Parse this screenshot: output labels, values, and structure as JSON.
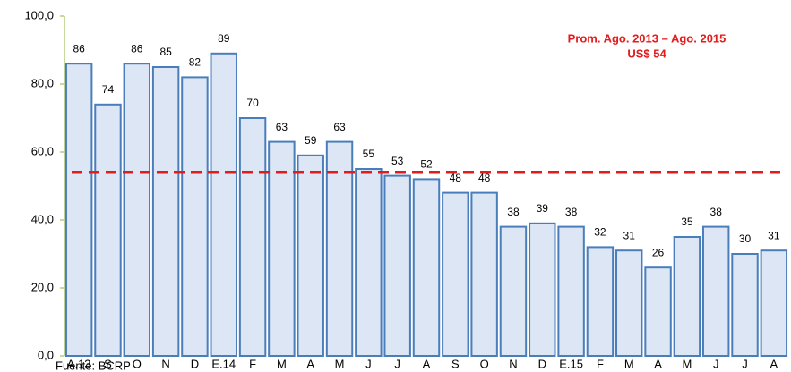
{
  "chart_data": {
    "type": "bar",
    "categories": [
      "A.13",
      "S",
      "O",
      "N",
      "D",
      "E.14",
      "F",
      "M",
      "A",
      "M",
      "J",
      "J",
      "A",
      "S",
      "O",
      "N",
      "D",
      "E.15",
      "F",
      "M",
      "A",
      "M",
      "J",
      "J",
      "A"
    ],
    "values": [
      86,
      74,
      86,
      85,
      82,
      89,
      70,
      63,
      59,
      63,
      55,
      53,
      52,
      48,
      48,
      38,
      39,
      38,
      32,
      31,
      26,
      35,
      38,
      30,
      31
    ],
    "color": "#dce6f4",
    "edge_color": "#4a7ebb",
    "ylim": [
      0,
      100
    ],
    "yticks": [
      {
        "value": 0,
        "label": "0,0"
      },
      {
        "value": 20,
        "label": "20,0"
      },
      {
        "value": 40,
        "label": "40,0"
      },
      {
        "value": 60,
        "label": "60,0"
      },
      {
        "value": 80,
        "label": "80,0"
      },
      {
        "value": 100,
        "label": "100,0"
      }
    ],
    "reference_line": {
      "value": 54,
      "color": "#e31b1b"
    },
    "annotation": [
      "Prom. Ago. 2013 – Ago. 2015",
      "US$ 54"
    ],
    "source": "Fuente: BCRP"
  }
}
